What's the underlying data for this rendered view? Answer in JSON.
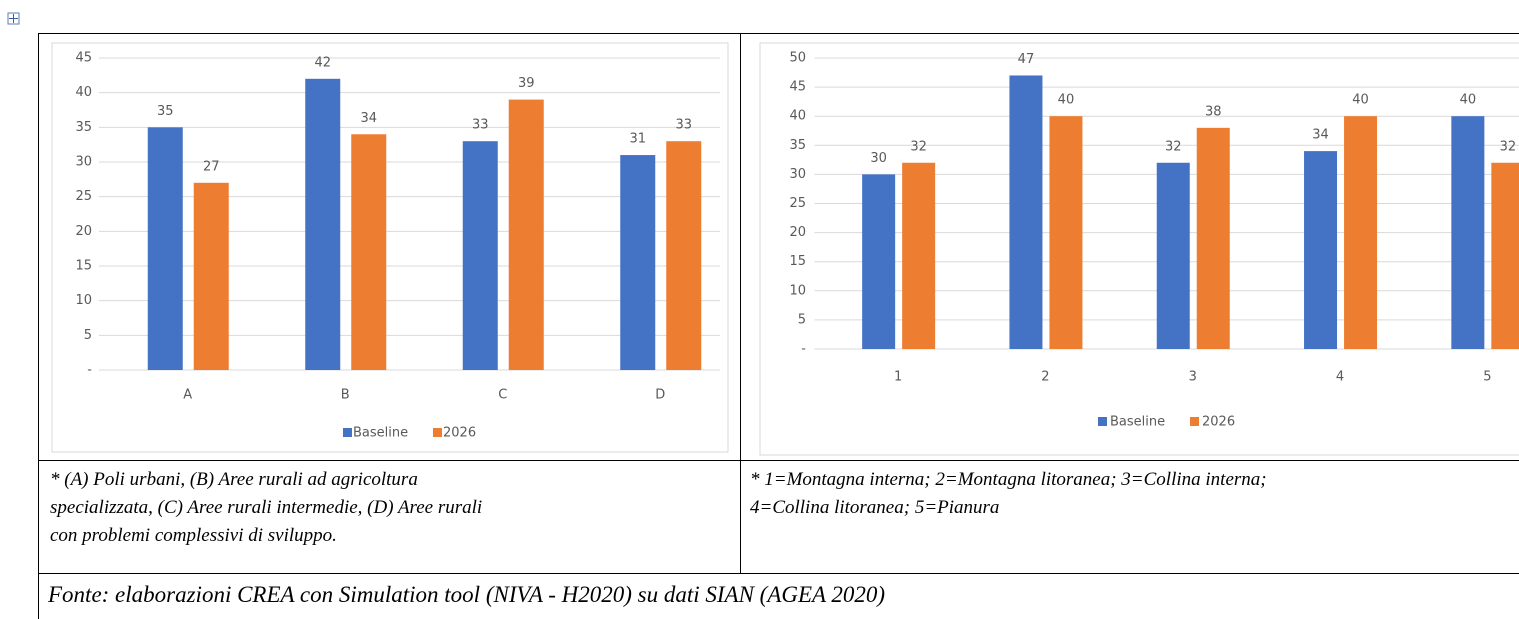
{
  "chart_data": [
    {
      "type": "bar",
      "categories": [
        "A",
        "B",
        "C",
        "D"
      ],
      "series": [
        {
          "name": "Baseline",
          "color": "#4472c4",
          "values": [
            35,
            42,
            33,
            31
          ]
        },
        {
          "name": "2026",
          "color": "#ed7d31",
          "values": [
            27,
            34,
            39,
            33
          ]
        }
      ],
      "ylim": [
        0,
        45
      ],
      "yticks": [
        {
          "value": 0,
          "label": "-"
        },
        5,
        10,
        15,
        20,
        25,
        30,
        35,
        40,
        45
      ],
      "grid": true,
      "legend": "bottom"
    },
    {
      "type": "bar",
      "categories": [
        "1",
        "2",
        "3",
        "4",
        "5"
      ],
      "series": [
        {
          "name": "Baseline",
          "color": "#4472c4",
          "values": [
            30,
            47,
            32,
            34,
            40
          ]
        },
        {
          "name": "2026",
          "color": "#ed7d31",
          "values": [
            32,
            40,
            38,
            40,
            32
          ]
        }
      ],
      "ylim": [
        0,
        50
      ],
      "yticks": [
        {
          "value": 0,
          "label": "-"
        },
        5,
        10,
        15,
        20,
        25,
        30,
        35,
        40,
        45,
        50
      ],
      "grid": true,
      "legend": "bottom"
    }
  ],
  "captions": [
    [
      "* (A) Poli urbani, (B) Aree rurali ad agricoltura",
      "specializzata, (C) Aree rurali intermedie, (D) Aree rurali",
      "con problemi complessivi di sviluppo."
    ],
    [
      "* 1=Montagna interna; 2=Montagna litoranea; 3=Collina interna;",
      "4=Collina litoranea; 5=Pianura"
    ]
  ],
  "source": "Fonte: elaborazioni CREA con Simulation tool (NIVA - H2020) su dati SIAN (AGEA 2020)"
}
